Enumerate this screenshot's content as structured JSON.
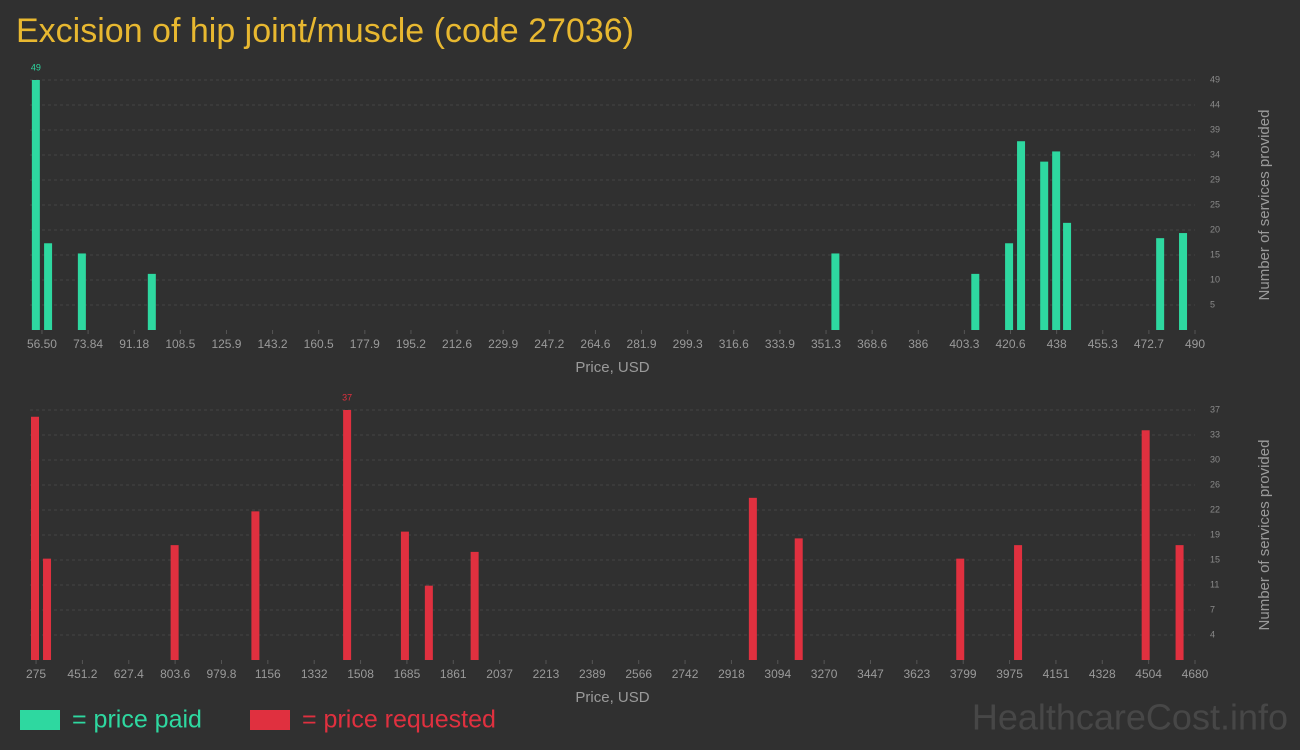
{
  "title": "Excision of hip joint/muscle (code 27036)",
  "watermark": "HealthcareCost.info",
  "chart_data": [
    {
      "type": "bar",
      "x_label": "Price, USD",
      "y_label": "Number of services provided",
      "x": [
        54.2,
        58.8,
        71.5,
        97.8,
        354.8,
        407.4,
        420.1,
        424.6,
        433.3,
        437.8,
        441.9,
        476.9,
        485.5
      ],
      "series": [
        {
          "name": "= price paid",
          "color": "#2ed8a0",
          "values": [
            49,
            17,
            15,
            11,
            15,
            11,
            17,
            37,
            33,
            35,
            21,
            18,
            19
          ]
        }
      ],
      "xlim": [
        52,
        490
      ],
      "xticks": [
        {
          "value": 56.5,
          "label": "56.50"
        },
        73.84,
        91.18,
        {
          "value": 108.52,
          "label": "108.5"
        },
        {
          "value": 125.86,
          "label": "125.9"
        },
        143.2,
        {
          "value": 160.54,
          "label": "160.5"
        },
        {
          "value": 177.88,
          "label": "177.9"
        },
        {
          "value": 195.22,
          "label": "195.2"
        },
        {
          "value": 212.56,
          "label": "212.6"
        },
        229.9,
        {
          "value": 247.24,
          "label": "247.2"
        },
        {
          "value": 264.58,
          "label": "264.6"
        },
        {
          "value": 281.92,
          "label": "281.9"
        },
        {
          "value": 299.26,
          "label": "299.3"
        },
        316.6,
        {
          "value": 333.94,
          "label": "333.9"
        },
        {
          "value": 351.28,
          "label": "351.3"
        },
        {
          "value": 368.62,
          "label": "368.6"
        },
        {
          "value": 385.96,
          "label": "386"
        },
        403.3,
        {
          "value": 420.64,
          "label": "420.6"
        },
        {
          "value": 437.98,
          "label": "438"
        },
        {
          "value": 455.32,
          "label": "455.3"
        },
        {
          "value": 472.66,
          "label": "472.7"
        },
        490
      ],
      "ylim": [
        0,
        49
      ],
      "yticks": [
        {
          "value": 4.9,
          "label": "5"
        },
        {
          "value": 9.8,
          "label": "10"
        },
        {
          "value": 14.7,
          "label": "15"
        },
        {
          "value": 19.6,
          "label": "20"
        },
        {
          "value": 24.5,
          "label": "25"
        },
        {
          "value": 29.4,
          "label": "29"
        },
        {
          "value": 34.3,
          "label": "34"
        },
        {
          "value": 39.2,
          "label": "39"
        },
        {
          "value": 44.1,
          "label": "44"
        },
        49
      ],
      "grid": true
    },
    {
      "type": "bar",
      "x_label": "Price, USD",
      "y_label": "Number of services provided",
      "x": [
        271,
        316.7,
        801.7,
        1108.7,
        1457.3,
        1677,
        1768,
        1942,
        2999.5,
        3173.8,
        3787.7,
        4007.5,
        4492.5,
        4621.4
      ],
      "series": [
        {
          "name": "= price requested",
          "color": "#e0303f",
          "values": [
            36,
            15,
            17,
            22,
            37,
            19,
            11,
            16,
            24,
            18,
            15,
            17,
            34,
            17
          ]
        }
      ],
      "xlim": [
        252,
        4680
      ],
      "xticks": [
        275,
        451.2,
        627.4,
        803.6,
        979.8,
        1156,
        {
          "value": 1332.2,
          "label": "1332"
        },
        {
          "value": 1508.4,
          "label": "1508"
        },
        {
          "value": 1684.6,
          "label": "1685"
        },
        {
          "value": 1860.8,
          "label": "1861"
        },
        2037,
        {
          "value": 2213.2,
          "label": "2213"
        },
        {
          "value": 2389.4,
          "label": "2389"
        },
        {
          "value": 2565.6,
          "label": "2566"
        },
        {
          "value": 2741.8,
          "label": "2742"
        },
        2918,
        {
          "value": 3094.2,
          "label": "3094"
        },
        {
          "value": 3270.4,
          "label": "3270"
        },
        {
          "value": 3446.6,
          "label": "3447"
        },
        {
          "value": 3622.8,
          "label": "3623"
        },
        3799,
        {
          "value": 3975.2,
          "label": "3975"
        },
        {
          "value": 4151.4,
          "label": "4151"
        },
        {
          "value": 4327.6,
          "label": "4328"
        },
        {
          "value": 4503.8,
          "label": "4504"
        },
        4680
      ],
      "ylim": [
        0,
        37
      ],
      "yticks": [
        {
          "value": 3.7,
          "label": "4"
        },
        {
          "value": 7.4,
          "label": "7"
        },
        {
          "value": 11.1,
          "label": "11"
        },
        {
          "value": 14.8,
          "label": "15"
        },
        {
          "value": 18.5,
          "label": "19"
        },
        {
          "value": 22.2,
          "label": "22"
        },
        {
          "value": 25.9,
          "label": "26"
        },
        {
          "value": 29.6,
          "label": "30"
        },
        {
          "value": 33.3,
          "label": "33"
        },
        37
      ],
      "grid": true
    }
  ]
}
